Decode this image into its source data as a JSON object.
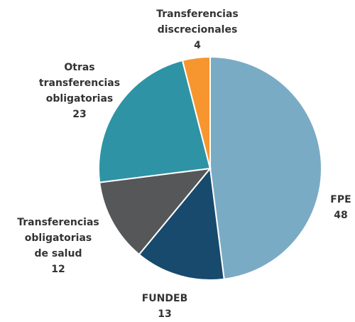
{
  "chart_data": {
    "type": "pie",
    "categories": [
      "FPE",
      "FUNDEB",
      "Transferencias\nobligatorias\nde salud",
      "Otras\ntransferencias\nobligatorias",
      "Transferencias\ndiscrecionales"
    ],
    "values": [
      48,
      13,
      12,
      23,
      4
    ],
    "colors": [
      "#7aabc5",
      "#174a6d",
      "#555759",
      "#2e93a5",
      "#f7962f"
    ]
  }
}
